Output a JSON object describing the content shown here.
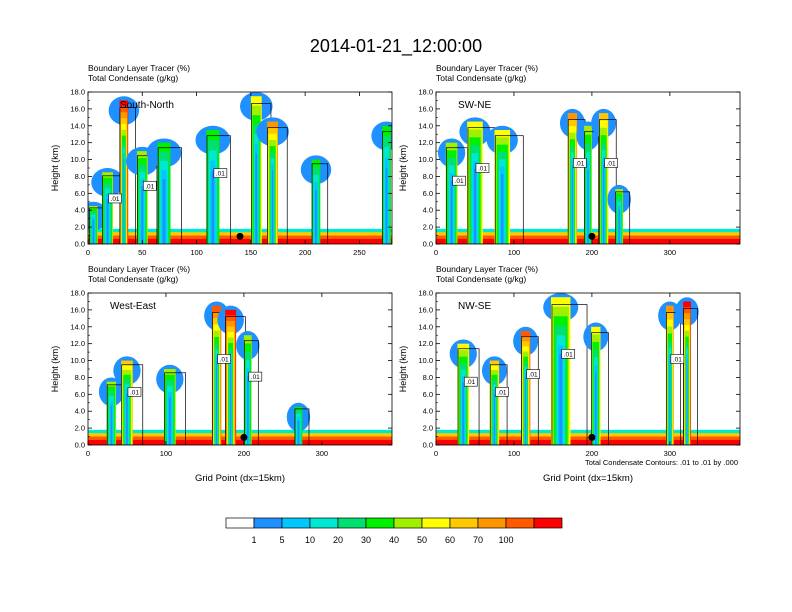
{
  "title": "2014-01-21_12:00:00",
  "footnote": "Total Condensate Contours: .01 to .01 by .000",
  "colorbar": {
    "colors": [
      "#ffffff",
      "#1e90ff",
      "#00c8ff",
      "#00e8d0",
      "#00e070",
      "#00f000",
      "#a0f000",
      "#ffff00",
      "#ffc800",
      "#ff9600",
      "#ff5a00",
      "#ff0000"
    ],
    "labels": [
      "1",
      "5",
      "10",
      "20",
      "30",
      "40",
      "50",
      "60",
      "70",
      "100"
    ]
  },
  "chart_data": [
    {
      "type": "heatmap",
      "panel_label": "South-North",
      "heading_line1": "Boundary Layer Tracer",
      "heading_unit1": "(%)",
      "heading_line2": "Total Condensate",
      "heading_unit2": "(g/kg)",
      "ylabel": "Height (km)",
      "xlabel": "",
      "ylim": [
        0,
        18
      ],
      "xlim": [
        0,
        280
      ],
      "xticks": [
        "0",
        "50",
        "100",
        "150",
        "200",
        "250"
      ],
      "yticks": [
        "0.0",
        "2.0",
        "4.0",
        "6.0",
        "8.0",
        "10.0",
        "12.0",
        "14.0",
        "16.0",
        "18.0"
      ],
      "marker_x": 140,
      "contour_labels": [
        ".01",
        ".01",
        ".01"
      ],
      "columns": [
        {
          "x": 5,
          "w": 8,
          "top": 4.5,
          "level": 3
        },
        {
          "x": 18,
          "w": 10,
          "top": 8.5,
          "level": 3
        },
        {
          "x": 33,
          "w": 8,
          "top": 17,
          "level": 8
        },
        {
          "x": 50,
          "w": 10,
          "top": 11,
          "level": 3
        },
        {
          "x": 70,
          "w": 12,
          "top": 12,
          "level": 2
        },
        {
          "x": 115,
          "w": 12,
          "top": 13.5,
          "level": 2
        },
        {
          "x": 155,
          "w": 10,
          "top": 17.5,
          "level": 4
        },
        {
          "x": 170,
          "w": 10,
          "top": 14.5,
          "level": 6
        },
        {
          "x": 210,
          "w": 8,
          "top": 10,
          "level": 2
        },
        {
          "x": 275,
          "w": 8,
          "top": 14,
          "level": 2
        }
      ]
    },
    {
      "type": "heatmap",
      "panel_label": "SW-NE",
      "heading_line1": "Boundary Layer Tracer",
      "heading_unit1": "(%)",
      "heading_line2": "Total Condensate",
      "heading_unit2": "(g/kg)",
      "ylabel": "Height (km)",
      "xlabel": "",
      "ylim": [
        0,
        18
      ],
      "xlim": [
        0,
        390
      ],
      "xticks": [
        "0",
        "100",
        "200",
        "300"
      ],
      "yticks": [
        "0.0",
        "2.0",
        "4.0",
        "6.0",
        "8.0",
        "10.0",
        "12.0",
        "14.0",
        "16.0",
        "18.0"
      ],
      "marker_x": 200,
      "contour_labels": [
        ".01",
        ".01",
        ".01",
        ".01"
      ],
      "columns": [
        {
          "x": 20,
          "w": 15,
          "top": 12,
          "level": 3
        },
        {
          "x": 50,
          "w": 20,
          "top": 14.5,
          "level": 4
        },
        {
          "x": 85,
          "w": 20,
          "top": 13.5,
          "level": 4
        },
        {
          "x": 175,
          "w": 12,
          "top": 15.5,
          "level": 6
        },
        {
          "x": 195,
          "w": 10,
          "top": 14,
          "level": 3
        },
        {
          "x": 215,
          "w": 12,
          "top": 15.5,
          "level": 5
        },
        {
          "x": 235,
          "w": 10,
          "top": 6.5,
          "level": 3
        }
      ]
    },
    {
      "type": "heatmap",
      "panel_label": "West-East",
      "heading_line1": "Boundary Layer Tracer",
      "heading_unit1": "(%)",
      "heading_line2": "Total Condensate",
      "heading_unit2": "(g/kg)",
      "ylabel": "Height (km)",
      "xlabel": "Grid Point (dx=15km)",
      "ylim": [
        0,
        18
      ],
      "xlim": [
        0,
        390
      ],
      "xticks": [
        "0",
        "100",
        "200",
        "300"
      ],
      "yticks": [
        "0.0",
        "2.0",
        "4.0",
        "6.0",
        "8.0",
        "10.0",
        "12.0",
        "14.0",
        "16.0",
        "18.0"
      ],
      "marker_x": 200,
      "contour_labels": [
        ".01",
        ".01",
        ".01"
      ],
      "columns": [
        {
          "x": 30,
          "w": 12,
          "top": 7.5,
          "level": 3
        },
        {
          "x": 50,
          "w": 15,
          "top": 10,
          "level": 5
        },
        {
          "x": 105,
          "w": 15,
          "top": 9,
          "level": 3
        },
        {
          "x": 165,
          "w": 12,
          "top": 16.5,
          "level": 7
        },
        {
          "x": 183,
          "w": 14,
          "top": 16,
          "level": 8
        },
        {
          "x": 205,
          "w": 10,
          "top": 13,
          "level": 3
        },
        {
          "x": 270,
          "w": 10,
          "top": 4.5,
          "level": 2
        }
      ]
    },
    {
      "type": "heatmap",
      "panel_label": "NW-SE",
      "heading_line1": "Boundary Layer Tracer",
      "heading_unit1": "(%)",
      "heading_line2": "Total Condensate",
      "heading_unit2": "(g/kg)",
      "ylabel": "Height (km)",
      "xlabel": "Grid Point (dx=15km)",
      "ylim": [
        0,
        18
      ],
      "xlim": [
        0,
        390
      ],
      "xticks": [
        "0",
        "100",
        "200",
        "300"
      ],
      "yticks": [
        "0.0",
        "2.0",
        "4.0",
        "6.0",
        "8.0",
        "10.0",
        "12.0",
        "14.0",
        "16.0",
        "18.0"
      ],
      "marker_x": 200,
      "contour_labels": [
        ".01",
        ".01",
        ".01",
        ".01",
        ".01"
      ],
      "columns": [
        {
          "x": 35,
          "w": 15,
          "top": 12,
          "level": 4
        },
        {
          "x": 75,
          "w": 12,
          "top": 10,
          "level": 5
        },
        {
          "x": 115,
          "w": 12,
          "top": 13.5,
          "level": 7
        },
        {
          "x": 160,
          "w": 25,
          "top": 17.5,
          "level": 4
        },
        {
          "x": 205,
          "w": 12,
          "top": 14,
          "level": 4
        },
        {
          "x": 300,
          "w": 10,
          "top": 16.5,
          "level": 6
        },
        {
          "x": 322,
          "w": 10,
          "top": 17,
          "level": 8
        }
      ]
    }
  ]
}
